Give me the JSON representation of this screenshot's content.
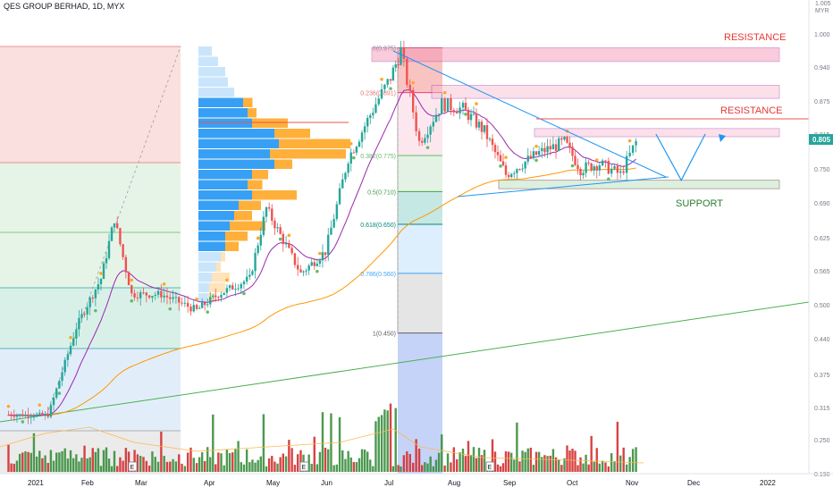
{
  "header": {
    "symbol": "QES GROUP BERHAD, 1D, MYX"
  },
  "price_scale": {
    "top_value": "1.005",
    "currency": "MYR",
    "ticks": [
      "1.000",
      "0.940",
      "0.875",
      "0.815",
      "0.750",
      "0.690",
      "0.625",
      "0.565",
      "0.500",
      "0.440",
      "0.375",
      "0.315",
      "0.250",
      "0.190"
    ],
    "current_price": "0.805"
  },
  "time_axis": {
    "ticks": [
      "2021",
      "Feb",
      "Mar",
      "Apr",
      "May",
      "Jun",
      "Jul",
      "Aug",
      "Sep",
      "Oct",
      "Nov",
      "Dec",
      "2022"
    ]
  },
  "annotations": {
    "resistance_top": "RESISTANCE",
    "resistance_mid": "RESISTANCE",
    "support": "SUPPORT",
    "earnings_marker": "E"
  },
  "fibonacci": [
    {
      "label": "0(0.975)",
      "value": 0.975
    },
    {
      "label": "0.236(0.891)",
      "value": 0.891
    },
    {
      "label": "0.382(0.775)",
      "value": 0.775
    },
    {
      "label": "0.5(0.710)",
      "value": 0.71
    },
    {
      "label": "0.618(0.650)",
      "value": 0.65
    },
    {
      "label": "0.786(0.560)",
      "value": 0.56
    },
    {
      "label": "1(0.450)",
      "value": 0.45
    }
  ],
  "colors": {
    "up": "#26a69a",
    "down": "#ef5350",
    "volume_up": "#388e3c",
    "volume_down": "#d32f2f",
    "resistance_text": "#e53935",
    "support_text": "#2e7d32",
    "price_tag": "#26a69a",
    "ma_fast": "#9c27b0",
    "ma_slow": "#ff9800",
    "trend_long": "#4caf50",
    "trendline": "#2196f3",
    "vp_up": "#2196f3",
    "vp_down": "#ff9800"
  },
  "chart_data": {
    "type": "candlestick",
    "title": "QES GROUP BERHAD, 1D, MYX",
    "ylabel": "MYR",
    "ylim": [
      0.19,
      1.005
    ],
    "x": [
      "2021-01",
      "2021-02",
      "2021-03",
      "2021-04",
      "2021-05",
      "2021-06",
      "2021-07",
      "2021-08",
      "2021-09",
      "2021-10",
      "2021-11"
    ],
    "close_path": [
      {
        "date": "2021-01-04",
        "close": 0.3
      },
      {
        "date": "2021-01-18",
        "close": 0.3
      },
      {
        "date": "2021-01-28",
        "close": 0.46
      },
      {
        "date": "2021-02-08",
        "close": 0.55
      },
      {
        "date": "2021-02-15",
        "close": 0.66
      },
      {
        "date": "2021-02-24",
        "close": 0.52
      },
      {
        "date": "2021-03-10",
        "close": 0.52
      },
      {
        "date": "2021-03-26",
        "close": 0.49
      },
      {
        "date": "2021-04-05",
        "close": 0.52
      },
      {
        "date": "2021-04-20",
        "close": 0.55
      },
      {
        "date": "2021-04-28",
        "close": 0.68
      },
      {
        "date": "2021-05-07",
        "close": 0.62
      },
      {
        "date": "2021-05-17",
        "close": 0.56
      },
      {
        "date": "2021-05-31",
        "close": 0.6
      },
      {
        "date": "2021-06-11",
        "close": 0.77
      },
      {
        "date": "2021-06-24",
        "close": 0.87
      },
      {
        "date": "2021-07-01",
        "close": 0.92
      },
      {
        "date": "2021-07-06",
        "close": 0.97
      },
      {
        "date": "2021-07-15",
        "close": 0.8
      },
      {
        "date": "2021-07-26",
        "close": 0.87
      },
      {
        "date": "2021-08-06",
        "close": 0.86
      },
      {
        "date": "2021-08-18",
        "close": 0.82
      },
      {
        "date": "2021-08-30",
        "close": 0.74
      },
      {
        "date": "2021-09-15",
        "close": 0.78
      },
      {
        "date": "2021-09-27",
        "close": 0.8
      },
      {
        "date": "2021-10-05",
        "close": 0.75
      },
      {
        "date": "2021-10-15",
        "close": 0.76
      },
      {
        "date": "2021-10-26",
        "close": 0.74
      },
      {
        "date": "2021-11-03",
        "close": 0.8
      }
    ],
    "moving_average_fast_end": 0.775,
    "moving_average_slow_end": 0.67,
    "support_zone": [
      0.715,
      0.73
    ],
    "resistance_zones": [
      [
        0.81,
        0.825
      ],
      [
        0.88,
        0.905
      ],
      [
        0.95,
        0.975
      ]
    ],
    "resistance_line": 0.845,
    "projection_path": [
      {
        "date": "2021-11-12",
        "close": 0.81
      },
      {
        "date": "2021-11-25",
        "close": 0.73
      },
      {
        "date": "2021-12-06",
        "close": 0.815
      }
    ]
  }
}
